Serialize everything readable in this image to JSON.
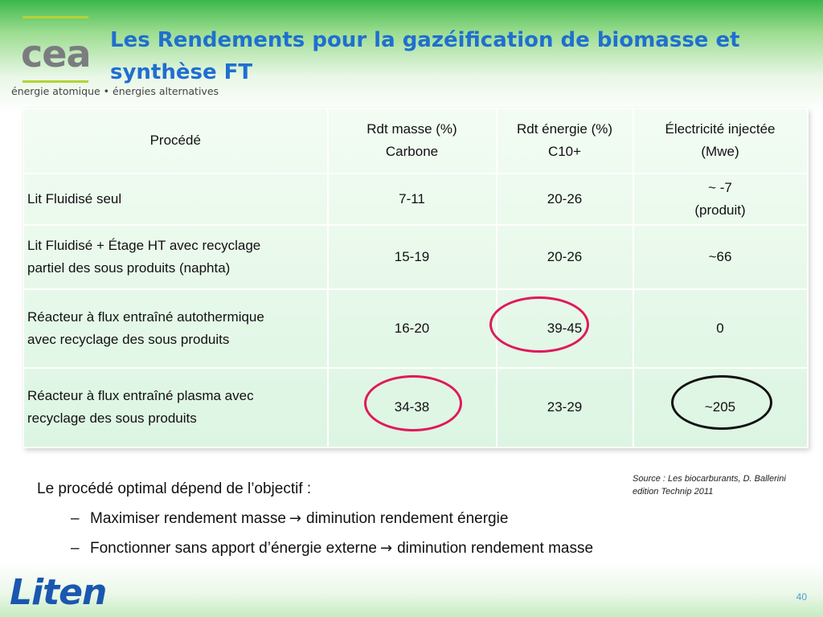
{
  "header": {
    "logo": {
      "mark": "cea",
      "tagline": "énergie atomique • énergies alternatives"
    },
    "title": "Les Rendements  pour  la gazéification de biomasse et synthèse FT"
  },
  "table": {
    "headers": [
      {
        "line1": "Procédé",
        "line2": ""
      },
      {
        "line1": "Rdt masse (%)",
        "line2": "Carbone"
      },
      {
        "line1": "Rdt énergie (%)",
        "line2": "C10+"
      },
      {
        "line1": "Électricité injectée",
        "line2": "(Mwe)"
      }
    ],
    "rows": [
      {
        "process": [
          "Lit Fluidisé seul"
        ],
        "mass": "7-11",
        "energy": "20-26",
        "elec": [
          "~ -7",
          "(produit)"
        ]
      },
      {
        "process": [
          "Lit Fluidisé + Étage HT avec recyclage",
          "partiel des sous produits (naphta)"
        ],
        "mass": "15-19",
        "energy": "20-26",
        "elec": [
          "~66"
        ]
      },
      {
        "process": [
          "Réacteur à flux entraîné autothermique",
          "avec recyclage des sous produits"
        ],
        "mass": "16-20",
        "energy": "39-45",
        "elec": [
          "0"
        ]
      },
      {
        "process": [
          "Réacteur à flux entraîné plasma avec",
          "recyclage des sous produits"
        ],
        "mass": "34-38",
        "energy": "23-29",
        "elec": [
          "~205"
        ]
      }
    ]
  },
  "body": {
    "intro": "Le procédé optimal dépend de l’objectif :",
    "bullets": [
      {
        "dash": "–",
        "left": "Maximiser rendement masse",
        "arrow": "→",
        "right": "diminution rendement énergie"
      },
      {
        "dash": "–",
        "left": "Fonctionner sans apport d’énergie externe",
        "arrow": "→",
        "right": "diminution rendement masse"
      }
    ]
  },
  "source": {
    "line1": "Source : Les biocarburants, D. Ballerini",
    "line2": "edition Technip 2011"
  },
  "footer": {
    "logo": "Liten",
    "page_number": "40"
  },
  "colors": {
    "title": "#1f6fd0",
    "circle_highlight": "#e0195a",
    "circle_dark": "#111111",
    "header_green": "#3bb84a"
  }
}
